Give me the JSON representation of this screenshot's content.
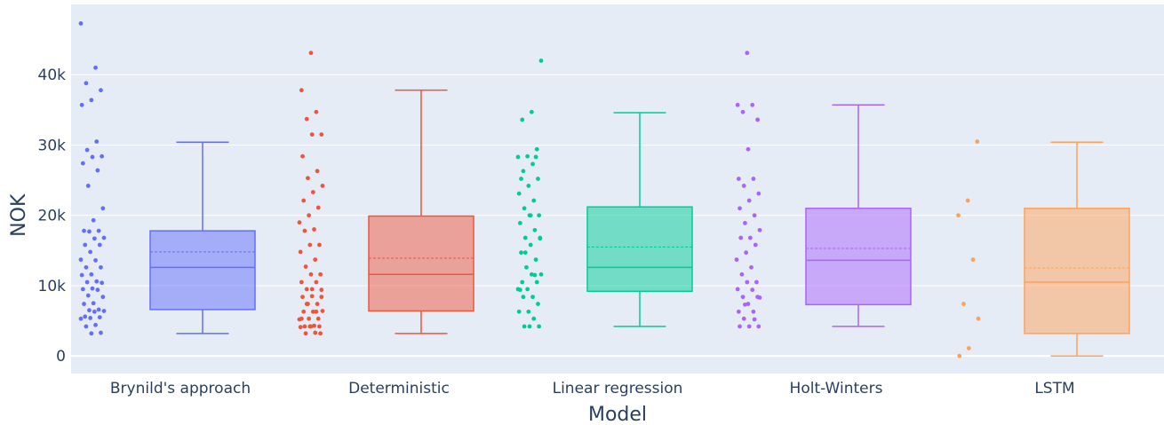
{
  "chart_data": {
    "type": "box",
    "xlabel": "Model",
    "ylabel": "NOK",
    "ylim": [
      -2500,
      50000
    ],
    "yticks": [
      0,
      10000,
      20000,
      30000,
      40000
    ],
    "ytick_labels": [
      "0",
      "10k",
      "20k",
      "30k",
      "40k"
    ],
    "grid": true,
    "background_color": "#e5ecf6",
    "boxpoints": "all",
    "series": [
      {
        "name": "Brynild's approach",
        "color": "#636efa",
        "lowerfence": 3200,
        "q1": 6600,
        "median": 12600,
        "mean": 14800,
        "q3": 17800,
        "upperfence": 30400,
        "points": [
          47300,
          41000,
          38800,
          37800,
          36400,
          35700,
          30500,
          29300,
          28400,
          28300,
          27400,
          26400,
          24200,
          21000,
          19300,
          17800,
          17800,
          17700,
          16800,
          16700,
          15800,
          15800,
          14800,
          13700,
          13600,
          12600,
          12600,
          11600,
          11500,
          10600,
          10500,
          10400,
          9600,
          9500,
          9400,
          8600,
          8400,
          7500,
          7400,
          6600,
          6500,
          6400,
          6300,
          5600,
          5500,
          5400,
          5300,
          4400,
          4200,
          3300,
          3200
        ]
      },
      {
        "name": "Deterministic",
        "color": "#ef553b",
        "lowerfence": 3200,
        "q1": 6400,
        "median": 11600,
        "mean": 13900,
        "q3": 19900,
        "upperfence": 37800,
        "points": [
          43100,
          37800,
          34700,
          33700,
          31500,
          31500,
          28400,
          26300,
          25300,
          24200,
          23300,
          22100,
          21100,
          20000,
          19000,
          18000,
          17800,
          15800,
          15800,
          14800,
          13700,
          12700,
          11600,
          11600,
          10500,
          10500,
          9500,
          9400,
          8500,
          8400,
          7400,
          7400,
          6400,
          6300,
          6300,
          5300,
          5300,
          5200,
          4300,
          4200,
          4200,
          4200,
          4100,
          3300,
          3200,
          3200,
          4200,
          5300,
          6300,
          7400,
          8400,
          9500
        ]
      },
      {
        "name": "Linear regression",
        "color": "#00cc96",
        "lowerfence": 4200,
        "q1": 9200,
        "median": 12600,
        "mean": 15500,
        "q3": 21200,
        "upperfence": 34600,
        "points": [
          42000,
          34700,
          33600,
          29400,
          28400,
          28300,
          27300,
          26300,
          25200,
          24200,
          23100,
          22100,
          21000,
          20000,
          20000,
          18900,
          17900,
          16800,
          16800,
          15800,
          14700,
          13700,
          12600,
          11600,
          11600,
          10500,
          10500,
          9500,
          9500,
          8400,
          8400,
          7400,
          6300,
          6300,
          5300,
          4200,
          4200,
          4200,
          9400,
          11500,
          14700,
          16700,
          20000,
          25200,
          28300
        ]
      },
      {
        "name": "Holt-Winters",
        "color": "#ab63fa",
        "lowerfence": 4200,
        "q1": 7300,
        "median": 13600,
        "mean": 15300,
        "q3": 21000,
        "upperfence": 35700,
        "points": [
          43100,
          35700,
          35700,
          34700,
          33600,
          29400,
          25200,
          25200,
          24200,
          23100,
          22100,
          21000,
          20000,
          18900,
          17900,
          16800,
          16800,
          15800,
          14700,
          13700,
          12600,
          11600,
          10500,
          10500,
          9500,
          9400,
          8400,
          8400,
          7400,
          6300,
          6300,
          5300,
          4200,
          4200,
          4200,
          5200,
          7300,
          8300
        ]
      },
      {
        "name": "LSTM",
        "color": "#ffa15a",
        "lowerfence": 0,
        "q1": 3200,
        "median": 10500,
        "mean": 12500,
        "q3": 21000,
        "upperfence": 30400,
        "points": [
          30500,
          22100,
          20000,
          13700,
          7400,
          5300,
          1100,
          0
        ]
      }
    ]
  }
}
